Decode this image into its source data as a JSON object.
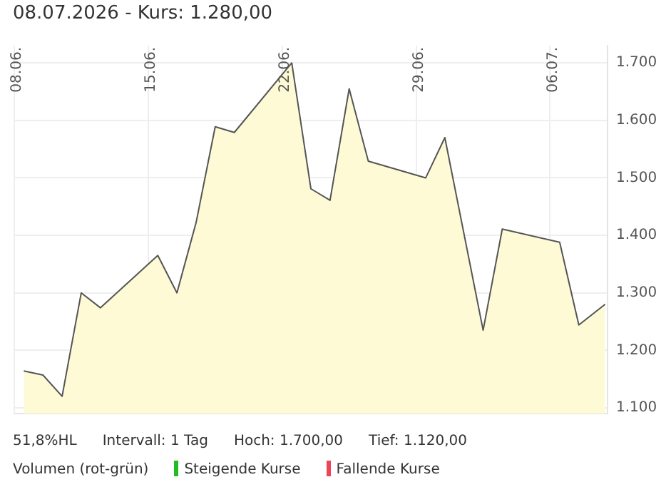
{
  "chart_data": {
    "type": "area",
    "title": "08.07.2026  -  Kurs: 1.280,00",
    "x": [
      "2026-06-08T12:00",
      "2026-06-09T12:00",
      "2026-06-10T12:00",
      "2026-06-11T12:00",
      "2026-06-12T12:00",
      "2026-06-15T12:00",
      "2026-06-16T12:00",
      "2026-06-17T12:00",
      "2026-06-18T12:00",
      "2026-06-19T12:00",
      "2026-06-22T12:00",
      "2026-06-23T12:00",
      "2026-06-24T12:00",
      "2026-06-25T12:00",
      "2026-06-26T12:00",
      "2026-06-29T12:00",
      "2026-06-30T12:00",
      "2026-07-02T12:00",
      "2026-07-03T12:00",
      "2026-07-06T12:00",
      "2026-07-07T12:00",
      "2026-07-08T21:00"
    ],
    "series": [
      {
        "color": "#555555",
        "values": [
          1164,
          1157,
          1120,
          1300,
          1274,
          1365,
          1300,
          1422,
          1589,
          1579,
          1700,
          1481,
          1461,
          1655,
          1529,
          1500,
          1570,
          1235,
          1411,
          1388,
          1244,
          1280
        ]
      }
    ],
    "xlim": [
      "2026-06-08",
      "2026-07-09"
    ],
    "xticks": [
      {
        "value": "2026-06-08",
        "label": "08.06."
      },
      {
        "value": "2026-06-15",
        "label": "15.06."
      },
      {
        "value": "2026-06-22",
        "label": "22.06."
      },
      {
        "value": "2026-06-29",
        "label": "29.06."
      },
      {
        "value": "2026-07-06",
        "label": "06.07."
      }
    ],
    "ylim": [
      1090,
      1730
    ],
    "yticks": [
      {
        "value": 1100,
        "label": "1.100"
      },
      {
        "value": 1200,
        "label": "1.200"
      },
      {
        "value": 1300,
        "label": "1.300"
      },
      {
        "value": 1400,
        "label": "1.400"
      },
      {
        "value": 1500,
        "label": "1.500"
      },
      {
        "value": 1600,
        "label": "1.600"
      },
      {
        "value": 1700,
        "label": "1.700"
      }
    ],
    "grid": true,
    "marker": "none",
    "line_style": "solid",
    "annotations": [
      "51,8%HL",
      "Intervall: 1 Tag",
      "Hoch: 1.700,00",
      "Tief: 1.120,00",
      "Volumen (rot-grün)",
      "Steigende Kurse",
      "Fallende Kurse"
    ]
  }
}
